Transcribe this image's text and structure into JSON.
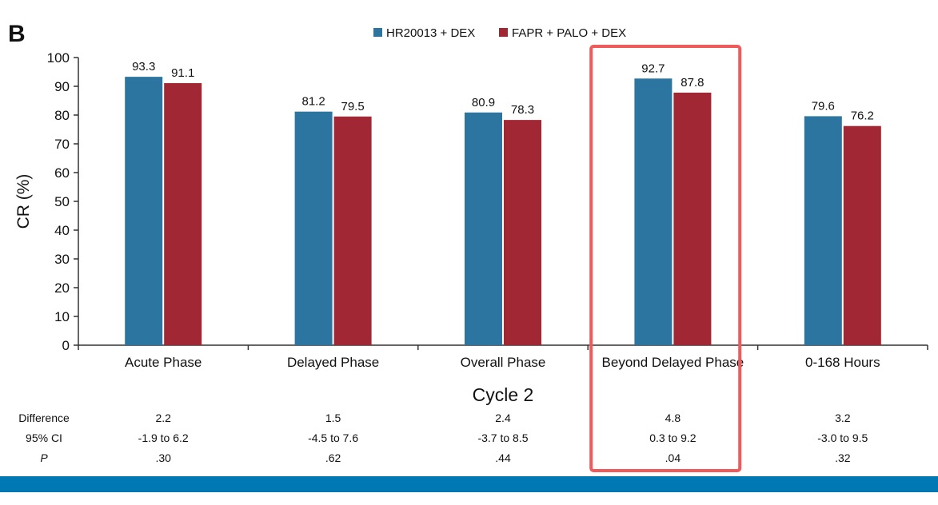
{
  "panel_label": "B",
  "colors": {
    "series_a": "#2B75A0",
    "series_b": "#A02733",
    "highlight": "#F05A5A",
    "band": "#0078B4"
  },
  "chart_data": {
    "type": "bar",
    "categories": [
      "Acute Phase",
      "Delayed Phase",
      "Overall Phase",
      "Beyond Delayed Phase",
      "0-168 Hours"
    ],
    "series": [
      {
        "name": "HR20013 + DEX",
        "values": [
          93.3,
          81.2,
          80.9,
          92.7,
          79.6
        ]
      },
      {
        "name": "FAPR + PALO + DEX",
        "values": [
          91.1,
          79.5,
          78.3,
          87.8,
          76.2
        ]
      }
    ],
    "data_labels": [
      [
        "93.3",
        "81.2",
        "80.9",
        "92.7",
        "79.6"
      ],
      [
        "91.1",
        "79.5",
        "78.3",
        "87.8",
        "76.2"
      ]
    ],
    "xlabel": "Cycle 2",
    "ylabel": "CR (%)",
    "ylim": [
      0,
      100
    ],
    "yticks": [
      0,
      10,
      20,
      30,
      40,
      50,
      60,
      70,
      80,
      90,
      100
    ],
    "legend_position": "top-center",
    "grid": false,
    "highlighted_category": "Beyond Delayed Phase"
  },
  "stats_table": {
    "rows": [
      {
        "label": "Difference",
        "values": [
          "2.2",
          "1.5",
          "2.4",
          "4.8",
          "3.2"
        ]
      },
      {
        "label": "95% CI",
        "values": [
          "-1.9 to 6.2",
          "-4.5 to 7.6",
          "-3.7 to 8.5",
          "0.3 to 9.2",
          "-3.0 to 9.5"
        ]
      },
      {
        "label": "P",
        "values": [
          ".30",
          ".62",
          ".44",
          ".04",
          ".32"
        ]
      }
    ]
  }
}
